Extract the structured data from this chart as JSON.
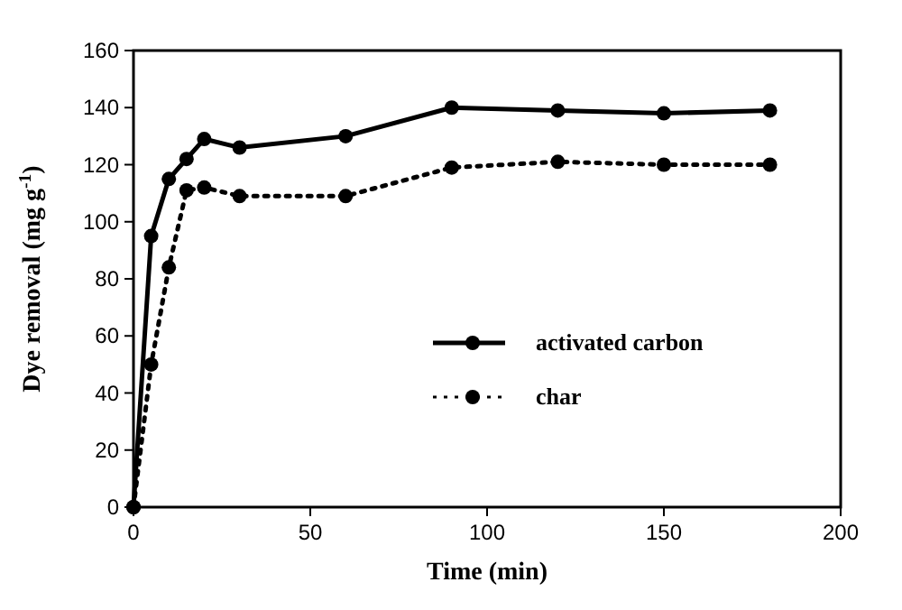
{
  "chart_data": {
    "type": "line",
    "xlabel": "Time (min)",
    "ylabel": "Dye removal (mg g$^{-1}$)",
    "x": [
      0,
      5,
      10,
      15,
      20,
      30,
      60,
      90,
      120,
      150,
      180
    ],
    "series": [
      {
        "name": "activated carbon",
        "color": "#000000",
        "line_style": "solid",
        "values": [
          0,
          95,
          115,
          122,
          129,
          126,
          130,
          140,
          139,
          138,
          139
        ]
      },
      {
        "name": "char",
        "color": "#000000",
        "line_style": "dotted",
        "values": [
          0,
          50,
          84,
          111,
          112,
          109,
          109,
          119,
          121,
          120,
          120
        ]
      }
    ],
    "xlim": [
      0,
      200
    ],
    "xticks": [
      0,
      50,
      100,
      150,
      200
    ],
    "ylim": [
      0,
      160
    ],
    "yticks": [
      0,
      20,
      40,
      60,
      80,
      100,
      120,
      140,
      160
    ],
    "marker": "circle",
    "legend": "bottom right",
    "grid": false
  }
}
